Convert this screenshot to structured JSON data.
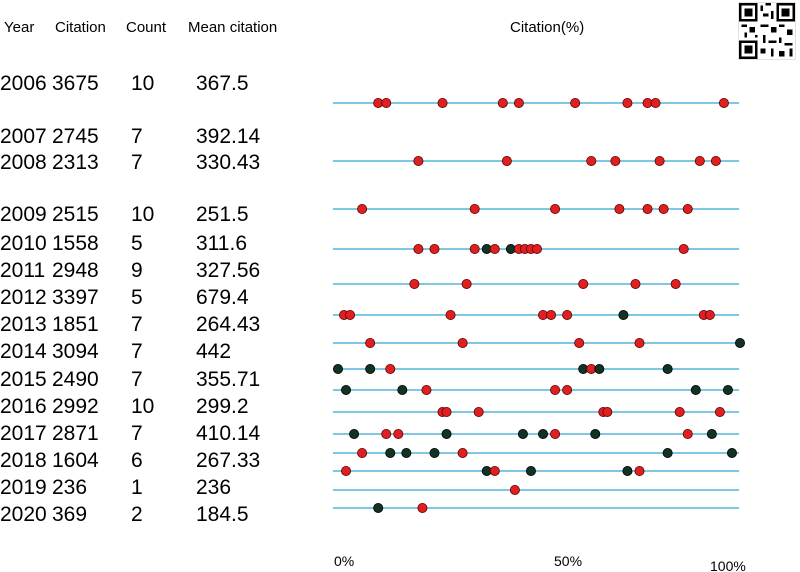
{
  "chart_data": {
    "type": "table",
    "title": "Citation(%)",
    "columns": [
      "Year",
      "Citation",
      "Count",
      "Mean citation"
    ],
    "x_ticks": [
      "0%",
      "50%",
      "100%"
    ],
    "xlim": [
      0,
      100
    ],
    "colors": {
      "line": "#7ec8e6",
      "red_dot": "#e02020",
      "dark_dot": "#123222",
      "dot_stroke": "#5a0000"
    },
    "rows": [
      {
        "year": "2006",
        "citation": "3675",
        "count": "10",
        "mean": "367.5",
        "dots": [
          {
            "x": 10,
            "c": "red"
          },
          {
            "x": 12,
            "c": "red"
          },
          {
            "x": 26,
            "c": "red"
          },
          {
            "x": 41,
            "c": "red"
          },
          {
            "x": 45,
            "c": "red"
          },
          {
            "x": 59,
            "c": "red"
          },
          {
            "x": 72,
            "c": "red"
          },
          {
            "x": 77,
            "c": "red"
          },
          {
            "x": 79,
            "c": "red"
          },
          {
            "x": 96,
            "c": "red"
          }
        ]
      },
      {
        "year": "2007",
        "citation": "2745",
        "count": "7",
        "mean": "392.14",
        "dots": []
      },
      {
        "year": "2008",
        "citation": "2313",
        "count": "7",
        "mean": "330.43",
        "dots": [
          {
            "x": 20,
            "c": "red"
          },
          {
            "x": 42,
            "c": "red"
          },
          {
            "x": 63,
            "c": "red"
          },
          {
            "x": 69,
            "c": "red"
          },
          {
            "x": 80,
            "c": "red"
          },
          {
            "x": 90,
            "c": "red"
          },
          {
            "x": 94,
            "c": "red"
          }
        ]
      },
      {
        "year": "2009",
        "citation": "2515",
        "count": "10",
        "mean": "251.5",
        "dots": [
          {
            "x": 6,
            "c": "red"
          },
          {
            "x": 34,
            "c": "red"
          },
          {
            "x": 54,
            "c": "red"
          },
          {
            "x": 70,
            "c": "red"
          },
          {
            "x": 77,
            "c": "red"
          },
          {
            "x": 81,
            "c": "red"
          },
          {
            "x": 87,
            "c": "red"
          }
        ]
      },
      {
        "year": "2010",
        "citation": "1558",
        "count": "5",
        "mean": "311.6",
        "dots": [
          {
            "x": 20,
            "c": "red"
          },
          {
            "x": 24,
            "c": "red"
          },
          {
            "x": 34,
            "c": "red"
          },
          {
            "x": 37,
            "c": "dark"
          },
          {
            "x": 39,
            "c": "red"
          },
          {
            "x": 43,
            "c": "dark"
          },
          {
            "x": 45,
            "c": "red"
          },
          {
            "x": 46.5,
            "c": "red"
          },
          {
            "x": 48,
            "c": "red"
          },
          {
            "x": 49.5,
            "c": "red"
          },
          {
            "x": 86,
            "c": "red"
          }
        ]
      },
      {
        "year": "2011",
        "citation": "2948",
        "count": "9",
        "mean": "327.56",
        "dots": [
          {
            "x": 19,
            "c": "red"
          },
          {
            "x": 32,
            "c": "red"
          },
          {
            "x": 61,
            "c": "red"
          },
          {
            "x": 74,
            "c": "red"
          },
          {
            "x": 84,
            "c": "red"
          }
        ]
      },
      {
        "year": "2012",
        "citation": "3397",
        "count": "5",
        "mean": "679.4",
        "dots": [
          {
            "x": 1.5,
            "c": "red"
          },
          {
            "x": 3,
            "c": "red"
          },
          {
            "x": 28,
            "c": "red"
          },
          {
            "x": 51,
            "c": "red"
          },
          {
            "x": 53,
            "c": "red"
          },
          {
            "x": 57,
            "c": "red"
          },
          {
            "x": 71,
            "c": "dark"
          },
          {
            "x": 91,
            "c": "red"
          },
          {
            "x": 92.5,
            "c": "red"
          }
        ]
      },
      {
        "year": "2013",
        "citation": "1851",
        "count": "7",
        "mean": "264.43",
        "dots": [
          {
            "x": 8,
            "c": "red"
          },
          {
            "x": 31,
            "c": "red"
          },
          {
            "x": 60,
            "c": "red"
          },
          {
            "x": 75,
            "c": "red"
          },
          {
            "x": 100,
            "c": "dark"
          }
        ]
      },
      {
        "year": "2014",
        "citation": "3094",
        "count": "7",
        "mean": "442",
        "dots": [
          {
            "x": 0,
            "c": "dark"
          },
          {
            "x": 8,
            "c": "dark"
          },
          {
            "x": 13,
            "c": "red"
          },
          {
            "x": 61,
            "c": "dark"
          },
          {
            "x": 63,
            "c": "red"
          },
          {
            "x": 65,
            "c": "dark"
          },
          {
            "x": 82,
            "c": "dark"
          }
        ]
      },
      {
        "year": "2015",
        "citation": "2490",
        "count": "7",
        "mean": "355.71",
        "dots": [
          {
            "x": 2,
            "c": "dark"
          },
          {
            "x": 16,
            "c": "dark"
          },
          {
            "x": 22,
            "c": "red"
          },
          {
            "x": 54,
            "c": "red"
          },
          {
            "x": 57,
            "c": "red"
          },
          {
            "x": 89,
            "c": "dark"
          },
          {
            "x": 97,
            "c": "dark"
          }
        ]
      },
      {
        "year": "2016",
        "citation": "2992",
        "count": "10",
        "mean": "299.2",
        "dots": [
          {
            "x": 26,
            "c": "red"
          },
          {
            "x": 27,
            "c": "red"
          },
          {
            "x": 35,
            "c": "red"
          },
          {
            "x": 66,
            "c": "red"
          },
          {
            "x": 67,
            "c": "red"
          },
          {
            "x": 85,
            "c": "red"
          },
          {
            "x": 95,
            "c": "red"
          }
        ]
      },
      {
        "year": "2017",
        "citation": "2871",
        "count": "7",
        "mean": "410.14",
        "dots": [
          {
            "x": 4,
            "c": "dark"
          },
          {
            "x": 12,
            "c": "red"
          },
          {
            "x": 15,
            "c": "red"
          },
          {
            "x": 27,
            "c": "dark"
          },
          {
            "x": 46,
            "c": "dark"
          },
          {
            "x": 51,
            "c": "dark"
          },
          {
            "x": 54,
            "c": "red"
          },
          {
            "x": 64,
            "c": "dark"
          },
          {
            "x": 87,
            "c": "red"
          },
          {
            "x": 93,
            "c": "dark"
          }
        ]
      },
      {
        "year": "2018",
        "citation": "1604",
        "count": "6",
        "mean": "267.33",
        "dots": [
          {
            "x": 6,
            "c": "red"
          },
          {
            "x": 13,
            "c": "dark"
          },
          {
            "x": 17,
            "c": "dark"
          },
          {
            "x": 24,
            "c": "dark"
          },
          {
            "x": 31,
            "c": "red"
          },
          {
            "x": 82,
            "c": "dark"
          },
          {
            "x": 98,
            "c": "dark"
          }
        ]
      },
      {
        "year": "2019",
        "citation": "236",
        "count": "1",
        "mean": "236",
        "dots": [
          {
            "x": 2,
            "c": "red"
          },
          {
            "x": 37,
            "c": "dark"
          },
          {
            "x": 39,
            "c": "red"
          },
          {
            "x": 48,
            "c": "dark"
          },
          {
            "x": 72,
            "c": "dark"
          },
          {
            "x": 75,
            "c": "red"
          }
        ]
      },
      {
        "year": "2020",
        "citation": "369",
        "count": "2",
        "mean": "184.5",
        "dots": [
          {
            "x": 44,
            "c": "red"
          }
        ]
      },
      {
        "year": "",
        "citation": "",
        "count": "",
        "mean": "",
        "dots": [
          {
            "x": 10,
            "c": "dark"
          },
          {
            "x": 21,
            "c": "red"
          }
        ]
      }
    ]
  }
}
